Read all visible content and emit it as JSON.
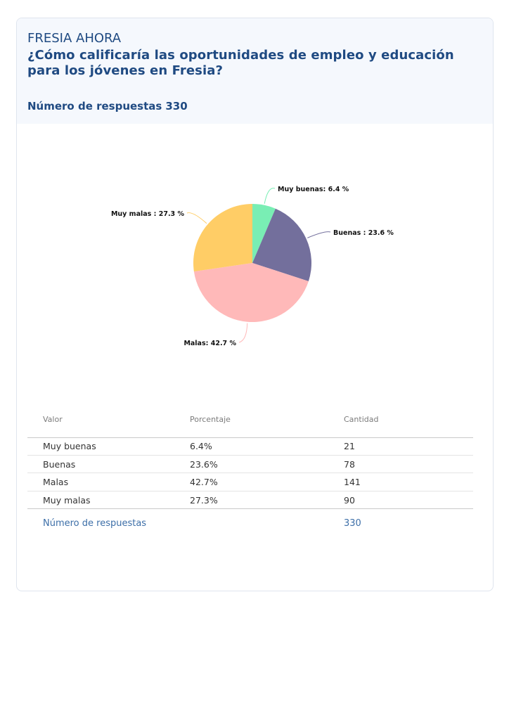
{
  "header": {
    "brand": "FRESIA AHORA",
    "question": "¿Cómo calificaría las oportunidades de empleo y educación para los jóvenes en Fresia?",
    "responses_label": "Número de respuestas",
    "responses_count": "330"
  },
  "chart_data": {
    "type": "pie",
    "categories": [
      "Muy buenas",
      "Buenas",
      "Malas",
      "Muy malas"
    ],
    "values": [
      6.4,
      23.6,
      42.7,
      27.3
    ],
    "labels": [
      "Muy buenas: 6.4 %",
      "Buenas : 23.6 %",
      "Malas: 42.7 %",
      "Muy malas : 27.3 %"
    ],
    "colors": [
      "#79eeb4",
      "#736f9c",
      "#ffb9b9",
      "#ffcd66"
    ],
    "title": "",
    "legend": "none"
  },
  "table": {
    "headers": [
      "Valor",
      "Porcentaje",
      "Cantidad"
    ],
    "rows": [
      [
        "Muy buenas",
        "6.4%",
        "21"
      ],
      [
        "Buenas",
        "23.6%",
        "78"
      ],
      [
        "Malas",
        "42.7%",
        "141"
      ],
      [
        "Muy malas",
        "27.3%",
        "90"
      ]
    ],
    "total_label": "Número de respuestas",
    "total_value": "330"
  }
}
